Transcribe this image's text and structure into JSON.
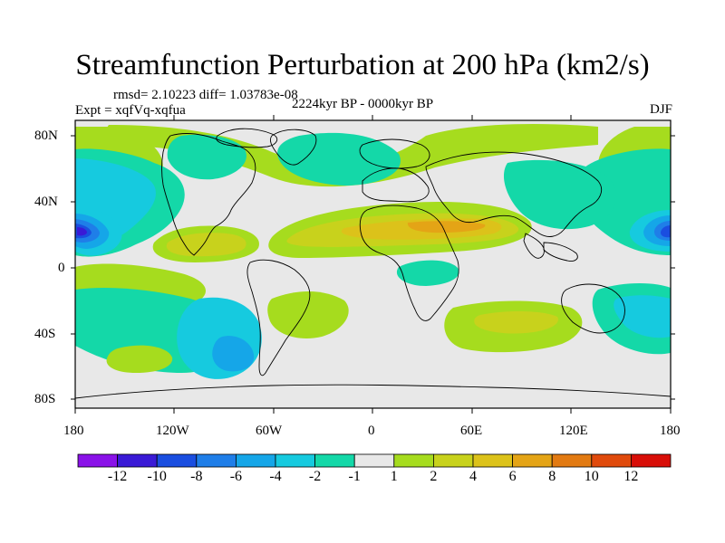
{
  "title": "Streamfunction Perturbation at 200 hPa (km2/s)",
  "rmsd_text": "rmsd= 2.10223 diff= 1.03783e-08",
  "expt_text": "Expt = xqfVq-xqfua",
  "period_text": "2224kyr BP - 0000kyr BP",
  "season": "DJF",
  "lat_ticks": [
    "80N",
    "40N",
    "0",
    "40S",
    "80S"
  ],
  "lon_ticks": [
    "180",
    "120W",
    "60W",
    "0",
    "60E",
    "120E",
    "180"
  ],
  "colorbar": {
    "labels": [
      "-12",
      "-10",
      "-8",
      "-6",
      "-4",
      "-2",
      "-1",
      "1",
      "2",
      "4",
      "6",
      "8",
      "10",
      "12"
    ],
    "colors": [
      "#8a12e8",
      "#3a1ad6",
      "#1a4ee0",
      "#1f7ee8",
      "#15a6e8",
      "#16cadf",
      "#14d8a8",
      "#e8e8e8",
      "#a6dc1e",
      "#c8d21c",
      "#dcc21a",
      "#e4a416",
      "#e27a12",
      "#e04a0c",
      "#d80e08"
    ]
  },
  "colors": {
    "background_field": "#e8e8e8",
    "frame": "#000000",
    "coastline": "#000000"
  }
}
